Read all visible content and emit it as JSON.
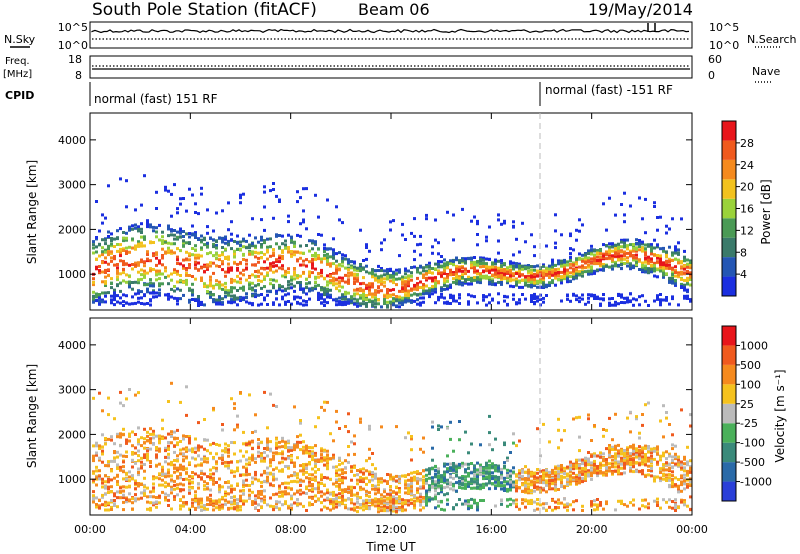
{
  "header": {
    "title": "South Pole Station (fitACF)",
    "beam": "Beam 06",
    "date": "19/May/2014"
  },
  "panels": {
    "nsky": {
      "label": "N.Sky",
      "ticks": [
        "10^5",
        "10^0"
      ]
    },
    "nsearch": {
      "label": "N.Search",
      "ticks": [
        "10^5",
        "10^0"
      ]
    },
    "freq": {
      "label1": "Freq.",
      "label2": "[MHz]",
      "ticks": [
        "18",
        "8"
      ]
    },
    "nave": {
      "label": "Nave",
      "ticks": [
        "60",
        "0"
      ]
    },
    "cpid": {
      "label": "CPID",
      "segments": [
        {
          "text": "normal (fast) 151 RF"
        },
        {
          "text": "normal (fast) -151 RF"
        }
      ]
    }
  },
  "colors": {
    "power_scale": [
      "#1b2fe0",
      "#2456b4",
      "#3a7a6a",
      "#4a9a55",
      "#9ad23a",
      "#f2c21e",
      "#f58a1e",
      "#f05a1e",
      "#e8151b"
    ],
    "velocity_scale": [
      "#2a3fd8",
      "#2a6aa8",
      "#3a8a7a",
      "#4ab05a",
      "#bbbbbb",
      "#f5c21e",
      "#f58a1e",
      "#f05a1e",
      "#e8151b"
    ]
  },
  "chart_data": [
    {
      "type": "heatmap",
      "ylabel": "Slant Range [km]",
      "colorbar_label": "Power [dB]",
      "colorbar_ticks": [
        "28",
        "24",
        "20",
        "16",
        "12",
        "8",
        "4"
      ],
      "yticks": [
        "4000",
        "3000",
        "2000",
        "1000"
      ],
      "ylim": [
        200,
        4600
      ],
      "xlim": [
        0,
        24
      ]
    },
    {
      "type": "heatmap",
      "ylabel": "Slant Range [km]",
      "colorbar_label": "Velocity [m s⁻¹]",
      "colorbar_ticks": [
        "1000",
        "500",
        "100",
        "25",
        "-25",
        "-100",
        "-500",
        "-1000"
      ],
      "yticks": [
        "4000",
        "3000",
        "2000",
        "1000"
      ],
      "ylim": [
        200,
        4600
      ],
      "xlim": [
        0,
        24
      ],
      "xticks": [
        "00:00",
        "04:00",
        "08:00",
        "12:00",
        "16:00",
        "20:00",
        "00:00"
      ],
      "xlabel": "Time UT"
    }
  ]
}
